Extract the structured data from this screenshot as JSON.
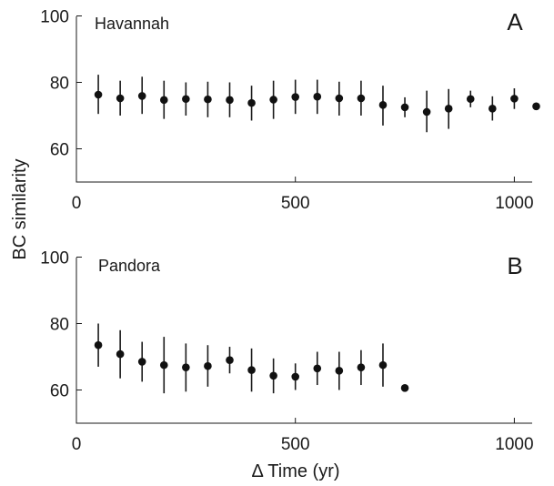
{
  "chart_data": [
    {
      "type": "scatter",
      "panel_label": "A",
      "title": "Havannah",
      "xlabel": "",
      "ylabel": "BC similarity",
      "xlim": [
        0,
        1080
      ],
      "ylim": [
        50,
        100
      ],
      "xticks": [
        0,
        500,
        1000
      ],
      "yticks": [
        60,
        80,
        100
      ],
      "error_bars": true,
      "points": [
        {
          "x": 50,
          "y": 76.3,
          "lo": 70.5,
          "hi": 82.3
        },
        {
          "x": 100,
          "y": 75.2,
          "lo": 70.0,
          "hi": 80.5
        },
        {
          "x": 150,
          "y": 75.9,
          "lo": 70.5,
          "hi": 81.7
        },
        {
          "x": 200,
          "y": 74.7,
          "lo": 69.0,
          "hi": 80.5
        },
        {
          "x": 250,
          "y": 75.0,
          "lo": 70.0,
          "hi": 80.0
        },
        {
          "x": 300,
          "y": 74.9,
          "lo": 69.5,
          "hi": 80.2
        },
        {
          "x": 350,
          "y": 74.7,
          "lo": 69.5,
          "hi": 80.0
        },
        {
          "x": 400,
          "y": 73.8,
          "lo": 68.5,
          "hi": 79.0
        },
        {
          "x": 450,
          "y": 74.8,
          "lo": 69.0,
          "hi": 80.5
        },
        {
          "x": 500,
          "y": 75.6,
          "lo": 70.5,
          "hi": 80.8
        },
        {
          "x": 550,
          "y": 75.7,
          "lo": 70.5,
          "hi": 80.8
        },
        {
          "x": 600,
          "y": 75.2,
          "lo": 70.0,
          "hi": 80.2
        },
        {
          "x": 650,
          "y": 75.2,
          "lo": 70.0,
          "hi": 80.5
        },
        {
          "x": 700,
          "y": 73.2,
          "lo": 67.0,
          "hi": 79.0
        },
        {
          "x": 750,
          "y": 72.5,
          "lo": 69.5,
          "hi": 75.5
        },
        {
          "x": 800,
          "y": 71.1,
          "lo": 65.0,
          "hi": 77.5
        },
        {
          "x": 850,
          "y": 72.1,
          "lo": 66.0,
          "hi": 78.0
        },
        {
          "x": 900,
          "y": 75.0,
          "lo": 72.5,
          "hi": 77.5
        },
        {
          "x": 950,
          "y": 72.1,
          "lo": 68.5,
          "hi": 75.8
        },
        {
          "x": 1000,
          "y": 75.1,
          "lo": 72.0,
          "hi": 78.2
        },
        {
          "x": 1050,
          "y": 72.8,
          "lo": 72.8,
          "hi": 72.8
        }
      ]
    },
    {
      "type": "scatter",
      "panel_label": "B",
      "title": "Pandora",
      "xlabel": "Δ Time (yr)",
      "ylabel": "BC similarity",
      "xlim": [
        0,
        1080
      ],
      "ylim": [
        50,
        100
      ],
      "xticks": [
        0,
        500,
        1000
      ],
      "yticks": [
        60,
        80,
        100
      ],
      "error_bars": true,
      "points": [
        {
          "x": 50,
          "y": 73.5,
          "lo": 67.0,
          "hi": 80.0
        },
        {
          "x": 100,
          "y": 70.8,
          "lo": 63.5,
          "hi": 78.0
        },
        {
          "x": 150,
          "y": 68.5,
          "lo": 62.5,
          "hi": 74.5
        },
        {
          "x": 200,
          "y": 67.5,
          "lo": 59.0,
          "hi": 76.0
        },
        {
          "x": 250,
          "y": 66.8,
          "lo": 59.5,
          "hi": 74.0
        },
        {
          "x": 300,
          "y": 67.2,
          "lo": 61.0,
          "hi": 73.5
        },
        {
          "x": 350,
          "y": 69.0,
          "lo": 65.0,
          "hi": 73.0
        },
        {
          "x": 400,
          "y": 66.0,
          "lo": 59.5,
          "hi": 72.5
        },
        {
          "x": 450,
          "y": 64.3,
          "lo": 59.0,
          "hi": 69.5
        },
        {
          "x": 500,
          "y": 64.0,
          "lo": 60.0,
          "hi": 68.0
        },
        {
          "x": 550,
          "y": 66.5,
          "lo": 61.5,
          "hi": 71.5
        },
        {
          "x": 600,
          "y": 65.8,
          "lo": 60.0,
          "hi": 71.5
        },
        {
          "x": 650,
          "y": 66.8,
          "lo": 61.5,
          "hi": 72.0
        },
        {
          "x": 700,
          "y": 67.5,
          "lo": 61.0,
          "hi": 74.0
        },
        {
          "x": 750,
          "y": 60.6,
          "lo": 60.6,
          "hi": 60.6
        }
      ]
    }
  ]
}
